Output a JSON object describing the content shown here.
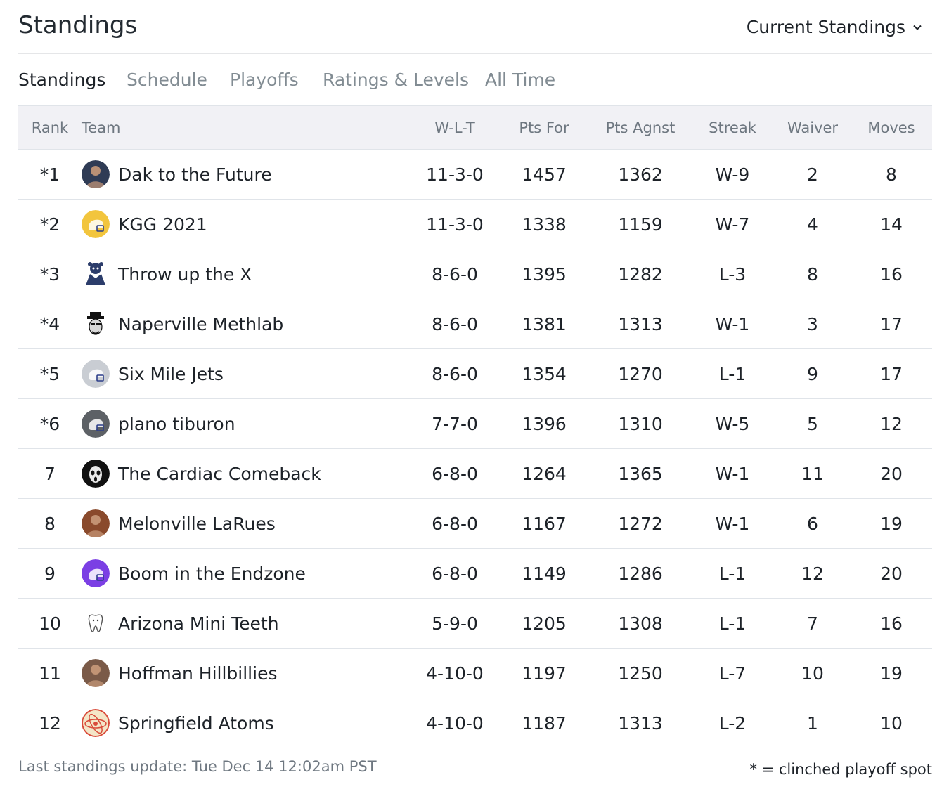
{
  "header": {
    "title": "Standings",
    "view_select": "Current Standings"
  },
  "tabs": [
    {
      "label": "Standings",
      "active": true
    },
    {
      "label": "Schedule",
      "active": false
    },
    {
      "label": "Playoffs",
      "active": false
    },
    {
      "label": "Ratings & Levels",
      "active": false
    },
    {
      "label": "All Time",
      "active": false
    }
  ],
  "table": {
    "columns": [
      "Rank",
      "Team",
      "W-L-T",
      "Pts For",
      "Pts Agnst",
      "Streak",
      "Waiver",
      "Moves"
    ],
    "rows": [
      {
        "rank": "*1",
        "team": "Dak to the Future",
        "wlt": "11-3-0",
        "pf": "1457",
        "pa": "1362",
        "streak": "W-9",
        "waiver": "2",
        "moves": "8",
        "logo": "photo-avatar",
        "color": "#2f3b55"
      },
      {
        "rank": "*2",
        "team": "KGG 2021",
        "wlt": "11-3-0",
        "pf": "1338",
        "pa": "1159",
        "streak": "W-7",
        "waiver": "4",
        "moves": "14",
        "logo": "helmet-icon",
        "color": "#f2c53d"
      },
      {
        "rank": "*3",
        "team": "Throw up the X",
        "wlt": "8-6-0",
        "pf": "1395",
        "pa": "1282",
        "streak": "L-3",
        "waiver": "8",
        "moves": "16",
        "logo": "mascot-avatar",
        "color": "#2c3d6b"
      },
      {
        "rank": "*4",
        "team": "Naperville Methlab",
        "wlt": "8-6-0",
        "pf": "1381",
        "pa": "1313",
        "streak": "W-1",
        "waiver": "3",
        "moves": "17",
        "logo": "hat-face-avatar",
        "color": "#222222"
      },
      {
        "rank": "*5",
        "team": "Six Mile Jets",
        "wlt": "8-6-0",
        "pf": "1354",
        "pa": "1270",
        "streak": "L-1",
        "waiver": "9",
        "moves": "17",
        "logo": "helmet-icon",
        "color": "#c9cdd3"
      },
      {
        "rank": "*6",
        "team": "plano tiburon",
        "wlt": "7-7-0",
        "pf": "1396",
        "pa": "1310",
        "streak": "W-5",
        "waiver": "5",
        "moves": "12",
        "logo": "helmet-icon",
        "color": "#5d6166"
      },
      {
        "rank": "7",
        "team": "The Cardiac Comeback",
        "wlt": "6-8-0",
        "pf": "1264",
        "pa": "1365",
        "streak": "W-1",
        "waiver": "11",
        "moves": "20",
        "logo": "mask-avatar",
        "color": "#111111"
      },
      {
        "rank": "8",
        "team": "Melonville LaRues",
        "wlt": "6-8-0",
        "pf": "1167",
        "pa": "1272",
        "streak": "W-1",
        "waiver": "6",
        "moves": "19",
        "logo": "photo-avatar",
        "color": "#8a4a2c"
      },
      {
        "rank": "9",
        "team": "Boom in the Endzone",
        "wlt": "6-8-0",
        "pf": "1149",
        "pa": "1286",
        "streak": "L-1",
        "waiver": "12",
        "moves": "20",
        "logo": "helmet-icon",
        "color": "#7b3fe4"
      },
      {
        "rank": "10",
        "team": "Arizona Mini Teeth",
        "wlt": "5-9-0",
        "pf": "1205",
        "pa": "1308",
        "streak": "L-1",
        "waiver": "7",
        "moves": "16",
        "logo": "tooth-icon",
        "color": "#ffffff"
      },
      {
        "rank": "11",
        "team": "Hoffman Hillbillies",
        "wlt": "4-10-0",
        "pf": "1197",
        "pa": "1250",
        "streak": "L-7",
        "waiver": "10",
        "moves": "19",
        "logo": "photo-avatar",
        "color": "#7a5a48"
      },
      {
        "rank": "12",
        "team": "Springfield Atoms",
        "wlt": "4-10-0",
        "pf": "1187",
        "pa": "1313",
        "streak": "L-2",
        "waiver": "1",
        "moves": "10",
        "logo": "atoms-logo",
        "color": "#d94b3a"
      }
    ]
  },
  "footer": {
    "updated": "Last standings update: Tue Dec 14 12:02am PST",
    "legend": "* = clinched playoff spot"
  }
}
